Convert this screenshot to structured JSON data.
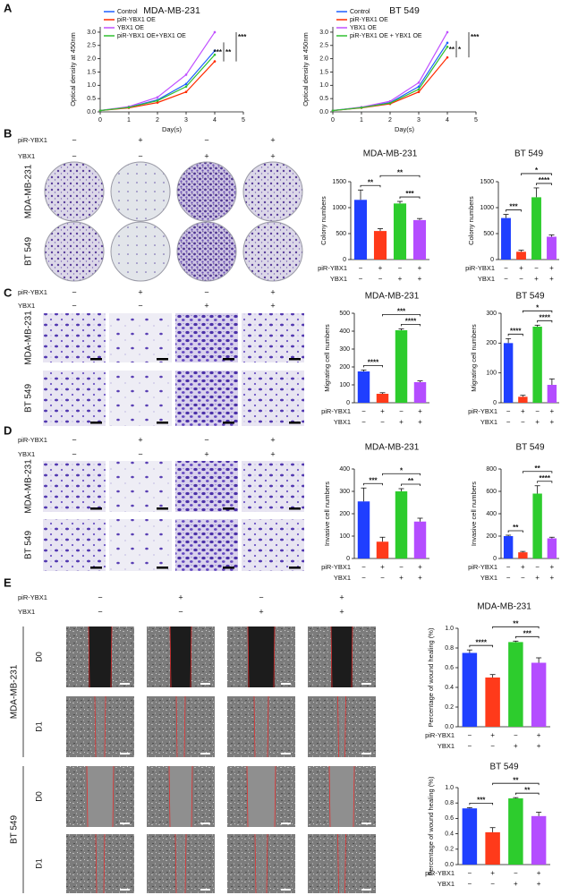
{
  "chart_data": [
    {
      "type": "line",
      "title": "MDA-MB-231",
      "x": [
        0,
        1,
        2,
        3,
        4
      ],
      "series": [
        {
          "name": "Control",
          "color": "#1f5fff",
          "values": [
            0.05,
            0.18,
            0.45,
            1.05,
            2.3
          ]
        },
        {
          "name": "piR-YBX1 OE",
          "color": "#ff2a00",
          "values": [
            0.05,
            0.15,
            0.35,
            0.75,
            1.9
          ]
        },
        {
          "name": "YBX1 OE",
          "color": "#c050ff",
          "values": [
            0.05,
            0.2,
            0.55,
            1.4,
            3.0
          ]
        },
        {
          "name": "piR-YBX1 OE+YBX1 OE",
          "color": "#30c030",
          "values": [
            0.05,
            0.17,
            0.42,
            0.95,
            2.15
          ]
        }
      ],
      "xlim": [
        0,
        5
      ],
      "xticks": [
        0,
        1,
        2,
        3,
        4,
        5
      ],
      "ylim": [
        0,
        3.2
      ],
      "yticks": [
        {
          "value": 0,
          "label": "0.0"
        },
        {
          "value": 0.5,
          "label": "0.5"
        },
        {
          "value": 1,
          "label": "1.0"
        },
        {
          "value": 1.5,
          "label": "1.5"
        },
        {
          "value": 2,
          "label": "2.0"
        },
        {
          "value": 2.5,
          "label": "2.5"
        },
        {
          "value": 3,
          "label": "3.0"
        }
      ],
      "xlabel": "Day(s)",
      "ylabel": "Optical density at 450nm",
      "annotations": [
        "***",
        "***",
        "**"
      ]
    },
    {
      "type": "line",
      "title": "BT 549",
      "x": [
        0,
        1,
        2,
        3,
        4
      ],
      "series": [
        {
          "name": "Control",
          "color": "#1f5fff",
          "values": [
            0.05,
            0.17,
            0.35,
            0.95,
            2.6
          ]
        },
        {
          "name": "piR-YBX1 OE",
          "color": "#ff2a00",
          "values": [
            0.05,
            0.15,
            0.3,
            0.75,
            2.05
          ]
        },
        {
          "name": "YBX1 OE",
          "color": "#c050ff",
          "values": [
            0.05,
            0.18,
            0.4,
            1.1,
            3.0
          ]
        },
        {
          "name": "piR-YBX1 OE + YBX1 OE",
          "color": "#30c030",
          "values": [
            0.05,
            0.16,
            0.33,
            0.85,
            2.45
          ]
        }
      ],
      "xlim": [
        0,
        5
      ],
      "xticks": [
        0,
        1,
        2,
        3,
        4,
        5
      ],
      "ylim": [
        0,
        3.2
      ],
      "yticks": [
        {
          "value": 0,
          "label": "0.0"
        },
        {
          "value": 0.5,
          "label": "0.5"
        },
        {
          "value": 1,
          "label": "1.0"
        },
        {
          "value": 1.5,
          "label": "1.5"
        },
        {
          "value": 2,
          "label": "2.0"
        },
        {
          "value": 2.5,
          "label": "2.5"
        },
        {
          "value": 3,
          "label": "3.0"
        }
      ],
      "xlabel": "Day(s)",
      "ylabel": "Optical density at 450nm",
      "annotations": [
        "***",
        "**",
        "*"
      ]
    },
    {
      "type": "bar",
      "title": "MDA-MB-231",
      "categories": [
        null,
        null,
        null,
        null
      ],
      "values": [
        1150,
        550,
        1080,
        760
      ],
      "errors": [
        190,
        45,
        40,
        30
      ],
      "colors": [
        "#1f3fff",
        "#ff3a1a",
        "#2dcc2d",
        "#b44dff"
      ],
      "ylim": [
        0,
        1500
      ],
      "yticks": [
        0,
        500,
        1000,
        1500
      ],
      "ylabel": "Colony numbers",
      "conditions": [
        {
          "name": "piR-YBX1",
          "signs": [
            "−",
            "+",
            "−",
            "+"
          ]
        },
        {
          "name": "YBX1",
          "signs": [
            "−",
            "−",
            "+",
            "+"
          ]
        }
      ],
      "annotations": [
        "**",
        "***",
        "**"
      ]
    },
    {
      "type": "bar",
      "title": "BT 549",
      "categories": [
        null,
        null,
        null,
        null
      ],
      "values": [
        800,
        150,
        1200,
        440
      ],
      "errors": [
        70,
        30,
        180,
        35
      ],
      "colors": [
        "#1f3fff",
        "#ff3a1a",
        "#2dcc2d",
        "#b44dff"
      ],
      "ylim": [
        0,
        1500
      ],
      "yticks": [
        0,
        500,
        1000,
        1500
      ],
      "ylabel": "Colony numbers",
      "conditions": [
        {
          "name": "piR-YBX1",
          "signs": [
            "−",
            "+",
            "−",
            "+"
          ]
        },
        {
          "name": "YBX1",
          "signs": [
            "−",
            "−",
            "+",
            "+"
          ]
        }
      ],
      "annotations": [
        "***",
        "****",
        "*"
      ]
    },
    {
      "type": "bar",
      "title": "MDA-MB-231",
      "categories": [
        null,
        null,
        null,
        null
      ],
      "values": [
        175,
        50,
        405,
        115
      ],
      "errors": [
        8,
        6,
        8,
        7
      ],
      "colors": [
        "#1f3fff",
        "#ff3a1a",
        "#2dcc2d",
        "#b44dff"
      ],
      "ylim": [
        0,
        500
      ],
      "yticks": [
        0,
        100,
        200,
        300,
        400,
        500
      ],
      "ylabel": "Migrating cell numbers",
      "conditions": [
        {
          "name": "piR-YBX1",
          "signs": [
            "−",
            "+",
            "−",
            "+"
          ]
        },
        {
          "name": "YBX1",
          "signs": [
            "−",
            "−",
            "+",
            "+"
          ]
        }
      ],
      "annotations": [
        "****",
        "****",
        "***"
      ]
    },
    {
      "type": "bar",
      "title": "BT 549",
      "categories": [
        null,
        null,
        null,
        null
      ],
      "values": [
        200,
        20,
        255,
        60
      ],
      "errors": [
        15,
        5,
        5,
        20
      ],
      "colors": [
        "#1f3fff",
        "#ff3a1a",
        "#2dcc2d",
        "#b44dff"
      ],
      "ylim": [
        0,
        300
      ],
      "yticks": [
        0,
        100,
        200,
        300
      ],
      "ylabel": "Migrating cell numbers",
      "conditions": [
        {
          "name": "piR-YBX1",
          "signs": [
            "−",
            "+",
            "−",
            "+"
          ]
        },
        {
          "name": "YBX1",
          "signs": [
            "−",
            "−",
            "+",
            "+"
          ]
        }
      ],
      "annotations": [
        "****",
        "****",
        "*"
      ]
    },
    {
      "type": "bar",
      "title": "MDA-MB-231",
      "categories": [
        null,
        null,
        null,
        null
      ],
      "values": [
        255,
        75,
        300,
        165
      ],
      "errors": [
        60,
        20,
        12,
        15
      ],
      "colors": [
        "#1f3fff",
        "#ff3a1a",
        "#2dcc2d",
        "#b44dff"
      ],
      "ylim": [
        0,
        400
      ],
      "yticks": [
        0,
        100,
        200,
        300,
        400
      ],
      "ylabel": "Invasive cell numbers",
      "conditions": [
        {
          "name": "piR-YBX1",
          "signs": [
            "−",
            "+",
            "−",
            "+"
          ]
        },
        {
          "name": "YBX1",
          "signs": [
            "−",
            "−",
            "+",
            "+"
          ]
        }
      ],
      "annotations": [
        "***",
        "**",
        "*"
      ]
    },
    {
      "type": "bar",
      "title": "BT 549",
      "categories": [
        null,
        null,
        null,
        null
      ],
      "values": [
        200,
        55,
        580,
        180
      ],
      "errors": [
        8,
        8,
        70,
        10
      ],
      "colors": [
        "#1f3fff",
        "#ff3a1a",
        "#2dcc2d",
        "#b44dff"
      ],
      "ylim": [
        0,
        800
      ],
      "yticks": [
        0,
        200,
        400,
        600,
        800
      ],
      "ylabel": "Invasive cell numbers",
      "conditions": [
        {
          "name": "piR-YBX1",
          "signs": [
            "−",
            "+",
            "−",
            "+"
          ]
        },
        {
          "name": "YBX1",
          "signs": [
            "−",
            "−",
            "+",
            "+"
          ]
        }
      ],
      "annotations": [
        "**",
        "****",
        "**"
      ]
    },
    {
      "type": "bar",
      "title": "MDA-MB-231",
      "categories": [
        null,
        null,
        null,
        null
      ],
      "values": [
        0.75,
        0.5,
        0.86,
        0.65
      ],
      "errors": [
        0.03,
        0.03,
        0.01,
        0.05
      ],
      "colors": [
        "#1f3fff",
        "#ff3a1a",
        "#2dcc2d",
        "#b44dff"
      ],
      "ylim": [
        0,
        1.0
      ],
      "yticks": [
        {
          "value": 0,
          "label": "0.0"
        },
        {
          "value": 0.2,
          "label": "0.2"
        },
        {
          "value": 0.4,
          "label": "0.4"
        },
        {
          "value": 0.6,
          "label": "0.6"
        },
        {
          "value": 0.8,
          "label": "0.8"
        },
        {
          "value": 1.0,
          "label": "1.0"
        }
      ],
      "ylabel": "Percentage of wound healing (%)",
      "conditions": [
        {
          "name": "piR-YBX1",
          "signs": [
            "−",
            "+",
            "−",
            "+"
          ]
        },
        {
          "name": "YBX1",
          "signs": [
            "−",
            "−",
            "+",
            "+"
          ]
        }
      ],
      "annotations": [
        "****",
        "***",
        "**"
      ]
    },
    {
      "type": "bar",
      "title": "BT 549",
      "categories": [
        null,
        null,
        null,
        null
      ],
      "values": [
        0.73,
        0.42,
        0.86,
        0.63
      ],
      "errors": [
        0.01,
        0.06,
        0.01,
        0.05
      ],
      "colors": [
        "#1f3fff",
        "#ff3a1a",
        "#2dcc2d",
        "#b44dff"
      ],
      "ylim": [
        0,
        1.0
      ],
      "yticks": [
        {
          "value": 0,
          "label": "0.0"
        },
        {
          "value": 0.2,
          "label": "0.2"
        },
        {
          "value": 0.4,
          "label": "0.4"
        },
        {
          "value": 0.6,
          "label": "0.6"
        },
        {
          "value": 0.8,
          "label": "0.8"
        },
        {
          "value": 1.0,
          "label": "1.0"
        }
      ],
      "ylabel": "Percentage of wound healing (%)",
      "conditions": [
        {
          "name": "piR-YBX1",
          "signs": [
            "−",
            "+",
            "−",
            "+"
          ]
        },
        {
          "name": "YBX1",
          "signs": [
            "−",
            "−",
            "+",
            "+"
          ]
        }
      ],
      "annotations": [
        "***",
        "**",
        "**"
      ]
    }
  ],
  "figure": {
    "panel_labels": [
      "A",
      "B",
      "C",
      "D",
      "E"
    ],
    "image_panels": [
      {
        "conditions": [
          {
            "name": "piR-YBX1",
            "signs": [
              "−",
              "+",
              "−",
              "+"
            ]
          },
          {
            "name": "YBX1",
            "signs": [
              "−",
              "−",
              "+",
              "+"
            ]
          }
        ],
        "row_labels": [
          "MDA-MB-231",
          "BT 549"
        ]
      },
      {
        "conditions": [
          {
            "name": "piR-YBX1",
            "signs": [
              "−",
              "+",
              "−",
              "+"
            ]
          },
          {
            "name": "YBX1",
            "signs": [
              "−",
              "−",
              "+",
              "+"
            ]
          }
        ],
        "row_labels": [
          "MDA-MB-231",
          "BT 549"
        ]
      },
      {
        "conditions": [
          {
            "name": "piR-YBX1",
            "signs": [
              "−",
              "+",
              "−",
              "+"
            ]
          },
          {
            "name": "YBX1",
            "signs": [
              "−",
              "−",
              "+",
              "+"
            ]
          }
        ],
        "row_labels": [
          "MDA-MB-231",
          "BT 549"
        ]
      },
      {
        "conditions": [
          {
            "name": "piR-YBX1",
            "signs": [
              "−",
              "+",
              "−",
              "+"
            ]
          },
          {
            "name": "YBX1",
            "signs": [
              "−",
              "−",
              "+",
              "+"
            ]
          }
        ],
        "cell_lines": [
          "MDA-MB-231",
          "BT 549"
        ],
        "row_labels": [
          "D0",
          "D1",
          "D0",
          "D1"
        ]
      }
    ]
  }
}
